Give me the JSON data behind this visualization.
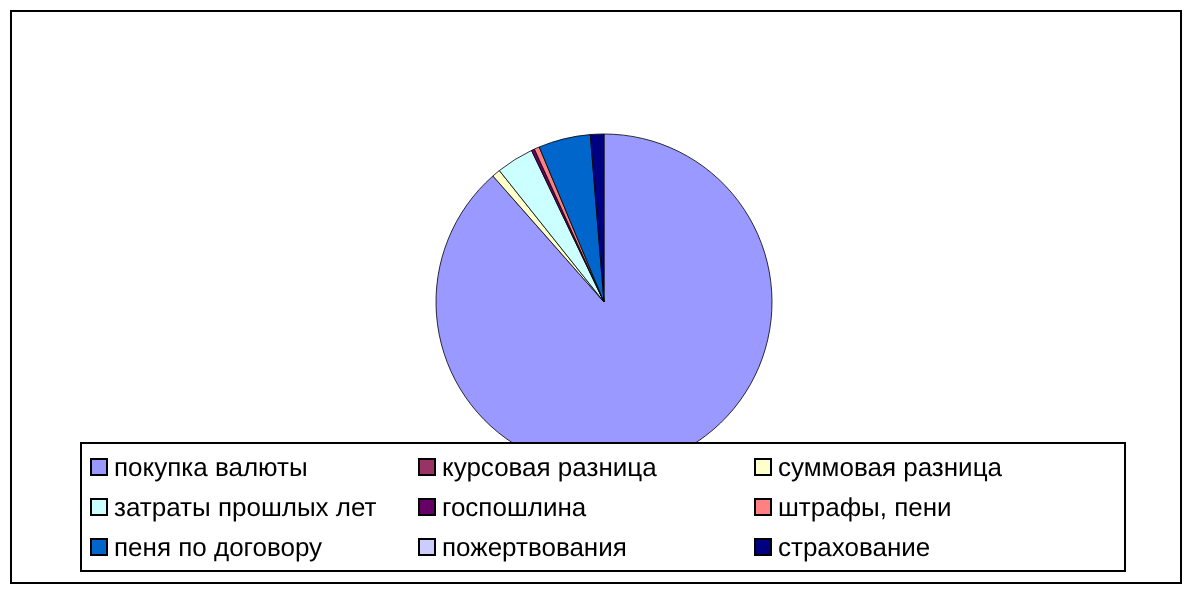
{
  "chart_data": {
    "type": "pie",
    "categories": [
      "покупка валюты",
      "курсовая разница",
      "суммовая разница",
      "затраты прошлых лет",
      "госпошлина",
      "штрафы, пени",
      "пеня по договору",
      "пожертвования",
      "страхование"
    ],
    "values": [
      88.5,
      0,
      0.8,
      3.6,
      0.3,
      0.5,
      5,
      0,
      1.3
    ],
    "colors": [
      "#9999ff",
      "#993366",
      "#ffffcc",
      "#ccffff",
      "#660066",
      "#ff8080",
      "#0066cc",
      "#ccccff",
      "#000080"
    ],
    "legend": "bottom"
  }
}
